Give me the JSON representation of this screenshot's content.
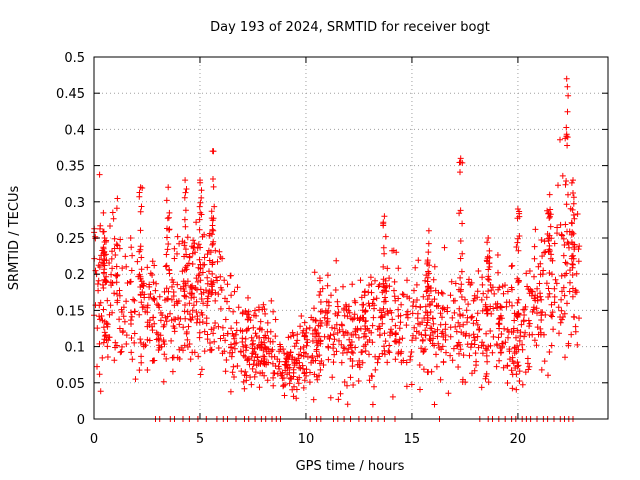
{
  "chart_data": {
    "type": "scatter",
    "title": "Day 193 of 2024, SRMTID for receiver bogt",
    "xlabel": "GPS time / hours",
    "ylabel": "SRMTID / TECUs",
    "xlim": [
      0,
      24.25
    ],
    "ylim": [
      0,
      0.5
    ],
    "xticks": [
      0,
      5,
      10,
      15,
      20
    ],
    "xtick_labels": [
      "0",
      "5",
      "10",
      "15",
      "20"
    ],
    "yticks": [
      0,
      0.05,
      0.1,
      0.15,
      0.2,
      0.25,
      0.3,
      0.35,
      0.4,
      0.45,
      0.5
    ],
    "ytick_labels": [
      "0",
      "0.05",
      "0.1",
      "0.15",
      "0.2",
      "0.25",
      "0.3",
      "0.35",
      "0.4",
      "0.45",
      "0.5"
    ],
    "grid": true,
    "marker": "+",
    "color": "#ff0000",
    "envelope": {
      "description": "approximate typical level of the scattered points vs time",
      "x": [
        0,
        0.5,
        1,
        1.5,
        2,
        2.5,
        3,
        3.5,
        4,
        4.5,
        5,
        5.5,
        6,
        6.5,
        7,
        7.5,
        8,
        8.5,
        9,
        9.5,
        10,
        10.5,
        11,
        11.5,
        12,
        12.5,
        13,
        13.5,
        14,
        14.5,
        15,
        15.5,
        16,
        16.5,
        17,
        17.5,
        18,
        18.5,
        19,
        19.5,
        20,
        20.5,
        21,
        21.5,
        22,
        22.5,
        22.9
      ],
      "y": [
        0.18,
        0.19,
        0.17,
        0.16,
        0.15,
        0.14,
        0.13,
        0.14,
        0.16,
        0.17,
        0.18,
        0.17,
        0.14,
        0.12,
        0.11,
        0.1,
        0.1,
        0.09,
        0.075,
        0.08,
        0.1,
        0.12,
        0.13,
        0.12,
        0.11,
        0.11,
        0.12,
        0.13,
        0.14,
        0.14,
        0.14,
        0.14,
        0.14,
        0.13,
        0.13,
        0.14,
        0.14,
        0.13,
        0.13,
        0.12,
        0.12,
        0.13,
        0.15,
        0.2,
        0.22,
        0.2,
        0.18
      ]
    },
    "peaks": [
      {
        "x": 0.5,
        "y": 0.25
      },
      {
        "x": 2.2,
        "y": 0.32
      },
      {
        "x": 3.5,
        "y": 0.32
      },
      {
        "x": 4.3,
        "y": 0.33
      },
      {
        "x": 5.0,
        "y": 0.33
      },
      {
        "x": 5.6,
        "y": 0.37
      },
      {
        "x": 13.7,
        "y": 0.28
      },
      {
        "x": 15.8,
        "y": 0.26
      },
      {
        "x": 17.3,
        "y": 0.36
      },
      {
        "x": 18.6,
        "y": 0.25
      },
      {
        "x": 20.0,
        "y": 0.29
      },
      {
        "x": 21.5,
        "y": 0.31
      },
      {
        "x": 22.3,
        "y": 0.47
      },
      {
        "x": 22.6,
        "y": 0.33
      }
    ],
    "zero_points_x": [
      2.9,
      3.1,
      3.6,
      3.8,
      4.2,
      4.5,
      4.9,
      5.3,
      5.8,
      6.1,
      6.3,
      6.7,
      7.1,
      7.3,
      7.6,
      7.9,
      8.1,
      8.4,
      8.6,
      8.8,
      10.2,
      10.5,
      10.7,
      11.3,
      11.5,
      11.8,
      12.1,
      12.5,
      12.8,
      13.1,
      13.4,
      13.7,
      14.2,
      16.3,
      18.2,
      18.6,
      18.8,
      19.1,
      19.4,
      19.7,
      19.9,
      20.2,
      20.4,
      20.6,
      20.9,
      21.2,
      21.4,
      21.7,
      22.0,
      22.2,
      22.4,
      22.6
    ]
  }
}
